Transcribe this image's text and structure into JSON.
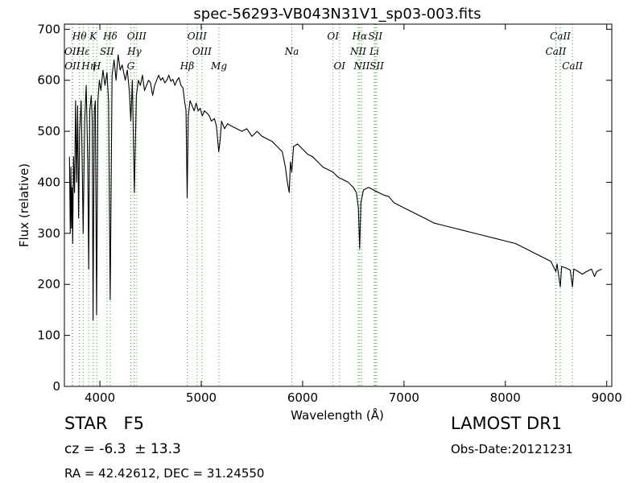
{
  "chart_data": {
    "type": "line",
    "title": "spec-56293-VB043N31V1_sp03-003.fits",
    "xlabel": "Wavelength (Å)",
    "ylabel": "Flux (relative)",
    "xlim": [
      3650,
      9050
    ],
    "ylim": [
      0,
      710
    ],
    "xticks": [
      4000,
      5000,
      6000,
      7000,
      8000,
      9000
    ],
    "yticks": [
      0,
      100,
      200,
      300,
      400,
      500,
      600,
      700
    ],
    "grid": false,
    "series": [
      {
        "color": "#000000",
        "points": [
          [
            3700,
            450
          ],
          [
            3708,
            300
          ],
          [
            3714,
            430
          ],
          [
            3720,
            310
          ],
          [
            3726,
            390
          ],
          [
            3732,
            280
          ],
          [
            3740,
            450
          ],
          [
            3750,
            380
          ],
          [
            3760,
            560
          ],
          [
            3770,
            400
          ],
          [
            3780,
            550
          ],
          [
            3790,
            330
          ],
          [
            3800,
            500
          ],
          [
            3815,
            560
          ],
          [
            3825,
            450
          ],
          [
            3835,
            300
          ],
          [
            3850,
            520
          ],
          [
            3865,
            590
          ],
          [
            3880,
            440
          ],
          [
            3890,
            230
          ],
          [
            3900,
            540
          ],
          [
            3915,
            570
          ],
          [
            3925,
            520
          ],
          [
            3933,
            130
          ],
          [
            3945,
            540
          ],
          [
            3955,
            560
          ],
          [
            3968,
            140
          ],
          [
            3980,
            560
          ],
          [
            3995,
            600
          ],
          [
            4010,
            580
          ],
          [
            4030,
            620
          ],
          [
            4050,
            590
          ],
          [
            4070,
            615
          ],
          [
            4085,
            560
          ],
          [
            4102,
            170
          ],
          [
            4120,
            610
          ],
          [
            4140,
            640
          ],
          [
            4160,
            600
          ],
          [
            4180,
            650
          ],
          [
            4200,
            620
          ],
          [
            4220,
            630
          ],
          [
            4250,
            600
          ],
          [
            4270,
            620
          ],
          [
            4290,
            580
          ],
          [
            4305,
            520
          ],
          [
            4320,
            600
          ],
          [
            4340,
            380
          ],
          [
            4360,
            570
          ],
          [
            4380,
            600
          ],
          [
            4400,
            590
          ],
          [
            4420,
            610
          ],
          [
            4440,
            580
          ],
          [
            4460,
            590
          ],
          [
            4480,
            600
          ],
          [
            4500,
            595
          ],
          [
            4520,
            570
          ],
          [
            4540,
            590
          ],
          [
            4560,
            600
          ],
          [
            4580,
            610
          ],
          [
            4600,
            600
          ],
          [
            4620,
            605
          ],
          [
            4640,
            595
          ],
          [
            4660,
            600
          ],
          [
            4680,
            610
          ],
          [
            4700,
            598
          ],
          [
            4720,
            602
          ],
          [
            4740,
            590
          ],
          [
            4760,
            600
          ],
          [
            4780,
            605
          ],
          [
            4800,
            590
          ],
          [
            4820,
            585
          ],
          [
            4835,
            560
          ],
          [
            4850,
            540
          ],
          [
            4861,
            370
          ],
          [
            4872,
            530
          ],
          [
            4890,
            560
          ],
          [
            4910,
            550
          ],
          [
            4930,
            540
          ],
          [
            4950,
            555
          ],
          [
            4970,
            540
          ],
          [
            4990,
            545
          ],
          [
            5010,
            530
          ],
          [
            5030,
            540
          ],
          [
            5060,
            535
          ],
          [
            5080,
            530
          ],
          [
            5100,
            520
          ],
          [
            5130,
            525
          ],
          [
            5150,
            510
          ],
          [
            5172,
            460
          ],
          [
            5185,
            480
          ],
          [
            5200,
            520
          ],
          [
            5230,
            505
          ],
          [
            5260,
            515
          ],
          [
            5300,
            510
          ],
          [
            5350,
            505
          ],
          [
            5400,
            500
          ],
          [
            5450,
            505
          ],
          [
            5500,
            490
          ],
          [
            5550,
            500
          ],
          [
            5600,
            490
          ],
          [
            5650,
            485
          ],
          [
            5700,
            480
          ],
          [
            5750,
            470
          ],
          [
            5800,
            460
          ],
          [
            5830,
            430
          ],
          [
            5850,
            400
          ],
          [
            5868,
            380
          ],
          [
            5880,
            440
          ],
          [
            5893,
            420
          ],
          [
            5910,
            470
          ],
          [
            5950,
            475
          ],
          [
            6000,
            465
          ],
          [
            6050,
            455
          ],
          [
            6100,
            450
          ],
          [
            6150,
            440
          ],
          [
            6200,
            430
          ],
          [
            6250,
            425
          ],
          [
            6300,
            420
          ],
          [
            6350,
            410
          ],
          [
            6400,
            405
          ],
          [
            6450,
            400
          ],
          [
            6500,
            390
          ],
          [
            6530,
            380
          ],
          [
            6550,
            350
          ],
          [
            6563,
            270
          ],
          [
            6575,
            360
          ],
          [
            6600,
            385
          ],
          [
            6650,
            390
          ],
          [
            6700,
            385
          ],
          [
            6750,
            380
          ],
          [
            6800,
            375
          ],
          [
            6850,
            372
          ],
          [
            6900,
            360
          ],
          [
            7000,
            350
          ],
          [
            7100,
            340
          ],
          [
            7200,
            330
          ],
          [
            7300,
            320
          ],
          [
            7400,
            315
          ],
          [
            7500,
            310
          ],
          [
            7600,
            305
          ],
          [
            7700,
            300
          ],
          [
            7800,
            295
          ],
          [
            7900,
            290
          ],
          [
            8000,
            285
          ],
          [
            8100,
            280
          ],
          [
            8200,
            270
          ],
          [
            8300,
            260
          ],
          [
            8400,
            250
          ],
          [
            8450,
            245
          ],
          [
            8498,
            225
          ],
          [
            8510,
            240
          ],
          [
            8542,
            195
          ],
          [
            8555,
            235
          ],
          [
            8600,
            232
          ],
          [
            8640,
            228
          ],
          [
            8662,
            195
          ],
          [
            8675,
            230
          ],
          [
            8720,
            225
          ],
          [
            8760,
            220
          ],
          [
            8800,
            225
          ],
          [
            8850,
            230
          ],
          [
            8880,
            215
          ],
          [
            8900,
            225
          ],
          [
            8950,
            230
          ]
        ]
      }
    ],
    "line_markers": [
      {
        "label": "Hθ",
        "x": 3798,
        "row": 0
      },
      {
        "label": "K",
        "x": 3934,
        "row": 0
      },
      {
        "label": "Hδ",
        "x": 4102,
        "row": 0
      },
      {
        "label": "OIII",
        "x": 4363,
        "row": 0
      },
      {
        "label": "OIII",
        "x": 4959,
        "row": 0
      },
      {
        "label": "OI",
        "x": 6300,
        "row": 0
      },
      {
        "label": "Hα",
        "x": 6563,
        "row": 0
      },
      {
        "label": "SII",
        "x": 6717,
        "row": 0
      },
      {
        "label": "CaII",
        "x": 8542,
        "row": 0
      },
      {
        "label": "OII",
        "x": 3727,
        "row": 1
      },
      {
        "label": "Hε",
        "x": 3835,
        "row": 1
      },
      {
        "label": "SII",
        "x": 4070,
        "row": 1
      },
      {
        "label": "Hγ",
        "x": 4340,
        "row": 1
      },
      {
        "label": "OIII",
        "x": 5007,
        "row": 1
      },
      {
        "label": "Na",
        "x": 5893,
        "row": 1
      },
      {
        "label": "NII",
        "x": 6548,
        "row": 1
      },
      {
        "label": "Li",
        "x": 6708,
        "row": 1
      },
      {
        "label": "CaII",
        "x": 8498,
        "row": 1
      },
      {
        "label": "OII",
        "x": 3729,
        "row": 2
      },
      {
        "label": "Hη",
        "x": 3889,
        "row": 2
      },
      {
        "label": "H",
        "x": 3969,
        "row": 2
      },
      {
        "label": "G",
        "x": 4305,
        "row": 2
      },
      {
        "label": "Hβ",
        "x": 4861,
        "row": 2
      },
      {
        "label": "Mg",
        "x": 5175,
        "row": 2
      },
      {
        "label": "OI",
        "x": 6364,
        "row": 2
      },
      {
        "label": "NII",
        "x": 6583,
        "row": 2
      },
      {
        "label": "SII",
        "x": 6731,
        "row": 2
      },
      {
        "label": "CaII",
        "x": 8662,
        "row": 2
      }
    ],
    "marker_color": "#2ca02c"
  },
  "info": {
    "object": "STAR   F5",
    "survey": "LAMOST DR1",
    "cz": "cz = -6.3  ± 13.3",
    "obs_date": "Obs-Date:20121231",
    "coords": "RA = 42.42612, DEC = 31.24550"
  }
}
